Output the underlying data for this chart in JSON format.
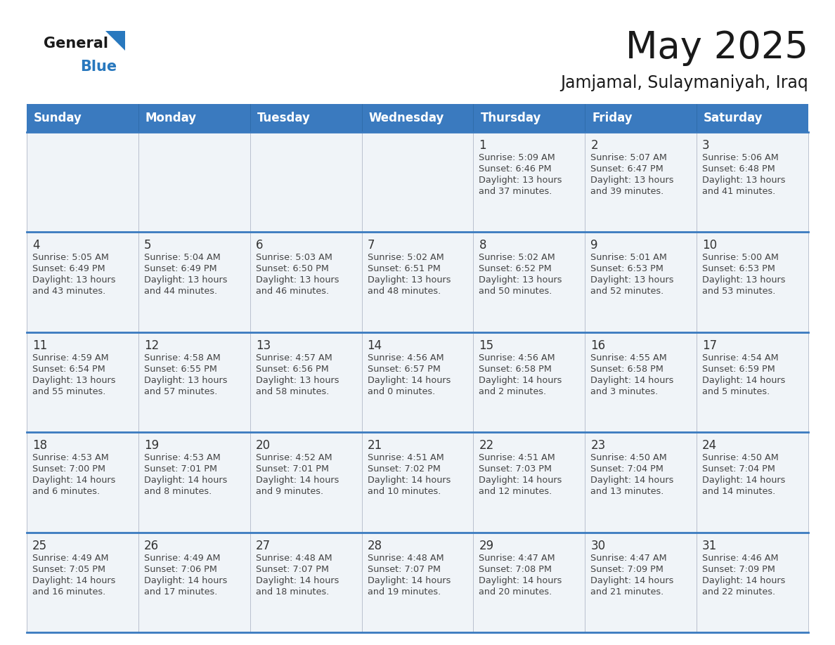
{
  "title": "May 2025",
  "subtitle": "Jamjamal, Sulaymaniyah, Iraq",
  "days_of_week": [
    "Sunday",
    "Monday",
    "Tuesday",
    "Wednesday",
    "Thursday",
    "Friday",
    "Saturday"
  ],
  "header_bg_color": "#3a7abf",
  "header_text_color": "#ffffff",
  "cell_bg_color": "#f0f4f8",
  "row_line_color": "#3a7abf",
  "day_number_color": "#333333",
  "cell_text_color": "#444444",
  "title_color": "#1a1a1a",
  "subtitle_color": "#1a1a1a",
  "logo_general_color": "#1a1a1a",
  "logo_blue_color": "#2878be",
  "logo_triangle_color": "#2878be",
  "calendar_data": [
    [
      {
        "day": "",
        "sunrise": "",
        "sunset": "",
        "daylight": ""
      },
      {
        "day": "",
        "sunrise": "",
        "sunset": "",
        "daylight": ""
      },
      {
        "day": "",
        "sunrise": "",
        "sunset": "",
        "daylight": ""
      },
      {
        "day": "",
        "sunrise": "",
        "sunset": "",
        "daylight": ""
      },
      {
        "day": "1",
        "sunrise": "Sunrise: 5:09 AM",
        "sunset": "Sunset: 6:46 PM",
        "daylight": "Daylight: 13 hours\nand 37 minutes."
      },
      {
        "day": "2",
        "sunrise": "Sunrise: 5:07 AM",
        "sunset": "Sunset: 6:47 PM",
        "daylight": "Daylight: 13 hours\nand 39 minutes."
      },
      {
        "day": "3",
        "sunrise": "Sunrise: 5:06 AM",
        "sunset": "Sunset: 6:48 PM",
        "daylight": "Daylight: 13 hours\nand 41 minutes."
      }
    ],
    [
      {
        "day": "4",
        "sunrise": "Sunrise: 5:05 AM",
        "sunset": "Sunset: 6:49 PM",
        "daylight": "Daylight: 13 hours\nand 43 minutes."
      },
      {
        "day": "5",
        "sunrise": "Sunrise: 5:04 AM",
        "sunset": "Sunset: 6:49 PM",
        "daylight": "Daylight: 13 hours\nand 44 minutes."
      },
      {
        "day": "6",
        "sunrise": "Sunrise: 5:03 AM",
        "sunset": "Sunset: 6:50 PM",
        "daylight": "Daylight: 13 hours\nand 46 minutes."
      },
      {
        "day": "7",
        "sunrise": "Sunrise: 5:02 AM",
        "sunset": "Sunset: 6:51 PM",
        "daylight": "Daylight: 13 hours\nand 48 minutes."
      },
      {
        "day": "8",
        "sunrise": "Sunrise: 5:02 AM",
        "sunset": "Sunset: 6:52 PM",
        "daylight": "Daylight: 13 hours\nand 50 minutes."
      },
      {
        "day": "9",
        "sunrise": "Sunrise: 5:01 AM",
        "sunset": "Sunset: 6:53 PM",
        "daylight": "Daylight: 13 hours\nand 52 minutes."
      },
      {
        "day": "10",
        "sunrise": "Sunrise: 5:00 AM",
        "sunset": "Sunset: 6:53 PM",
        "daylight": "Daylight: 13 hours\nand 53 minutes."
      }
    ],
    [
      {
        "day": "11",
        "sunrise": "Sunrise: 4:59 AM",
        "sunset": "Sunset: 6:54 PM",
        "daylight": "Daylight: 13 hours\nand 55 minutes."
      },
      {
        "day": "12",
        "sunrise": "Sunrise: 4:58 AM",
        "sunset": "Sunset: 6:55 PM",
        "daylight": "Daylight: 13 hours\nand 57 minutes."
      },
      {
        "day": "13",
        "sunrise": "Sunrise: 4:57 AM",
        "sunset": "Sunset: 6:56 PM",
        "daylight": "Daylight: 13 hours\nand 58 minutes."
      },
      {
        "day": "14",
        "sunrise": "Sunrise: 4:56 AM",
        "sunset": "Sunset: 6:57 PM",
        "daylight": "Daylight: 14 hours\nand 0 minutes."
      },
      {
        "day": "15",
        "sunrise": "Sunrise: 4:56 AM",
        "sunset": "Sunset: 6:58 PM",
        "daylight": "Daylight: 14 hours\nand 2 minutes."
      },
      {
        "day": "16",
        "sunrise": "Sunrise: 4:55 AM",
        "sunset": "Sunset: 6:58 PM",
        "daylight": "Daylight: 14 hours\nand 3 minutes."
      },
      {
        "day": "17",
        "sunrise": "Sunrise: 4:54 AM",
        "sunset": "Sunset: 6:59 PM",
        "daylight": "Daylight: 14 hours\nand 5 minutes."
      }
    ],
    [
      {
        "day": "18",
        "sunrise": "Sunrise: 4:53 AM",
        "sunset": "Sunset: 7:00 PM",
        "daylight": "Daylight: 14 hours\nand 6 minutes."
      },
      {
        "day": "19",
        "sunrise": "Sunrise: 4:53 AM",
        "sunset": "Sunset: 7:01 PM",
        "daylight": "Daylight: 14 hours\nand 8 minutes."
      },
      {
        "day": "20",
        "sunrise": "Sunrise: 4:52 AM",
        "sunset": "Sunset: 7:01 PM",
        "daylight": "Daylight: 14 hours\nand 9 minutes."
      },
      {
        "day": "21",
        "sunrise": "Sunrise: 4:51 AM",
        "sunset": "Sunset: 7:02 PM",
        "daylight": "Daylight: 14 hours\nand 10 minutes."
      },
      {
        "day": "22",
        "sunrise": "Sunrise: 4:51 AM",
        "sunset": "Sunset: 7:03 PM",
        "daylight": "Daylight: 14 hours\nand 12 minutes."
      },
      {
        "day": "23",
        "sunrise": "Sunrise: 4:50 AM",
        "sunset": "Sunset: 7:04 PM",
        "daylight": "Daylight: 14 hours\nand 13 minutes."
      },
      {
        "day": "24",
        "sunrise": "Sunrise: 4:50 AM",
        "sunset": "Sunset: 7:04 PM",
        "daylight": "Daylight: 14 hours\nand 14 minutes."
      }
    ],
    [
      {
        "day": "25",
        "sunrise": "Sunrise: 4:49 AM",
        "sunset": "Sunset: 7:05 PM",
        "daylight": "Daylight: 14 hours\nand 16 minutes."
      },
      {
        "day": "26",
        "sunrise": "Sunrise: 4:49 AM",
        "sunset": "Sunset: 7:06 PM",
        "daylight": "Daylight: 14 hours\nand 17 minutes."
      },
      {
        "day": "27",
        "sunrise": "Sunrise: 4:48 AM",
        "sunset": "Sunset: 7:07 PM",
        "daylight": "Daylight: 14 hours\nand 18 minutes."
      },
      {
        "day": "28",
        "sunrise": "Sunrise: 4:48 AM",
        "sunset": "Sunset: 7:07 PM",
        "daylight": "Daylight: 14 hours\nand 19 minutes."
      },
      {
        "day": "29",
        "sunrise": "Sunrise: 4:47 AM",
        "sunset": "Sunset: 7:08 PM",
        "daylight": "Daylight: 14 hours\nand 20 minutes."
      },
      {
        "day": "30",
        "sunrise": "Sunrise: 4:47 AM",
        "sunset": "Sunset: 7:09 PM",
        "daylight": "Daylight: 14 hours\nand 21 minutes."
      },
      {
        "day": "31",
        "sunrise": "Sunrise: 4:46 AM",
        "sunset": "Sunset: 7:09 PM",
        "daylight": "Daylight: 14 hours\nand 22 minutes."
      }
    ]
  ]
}
